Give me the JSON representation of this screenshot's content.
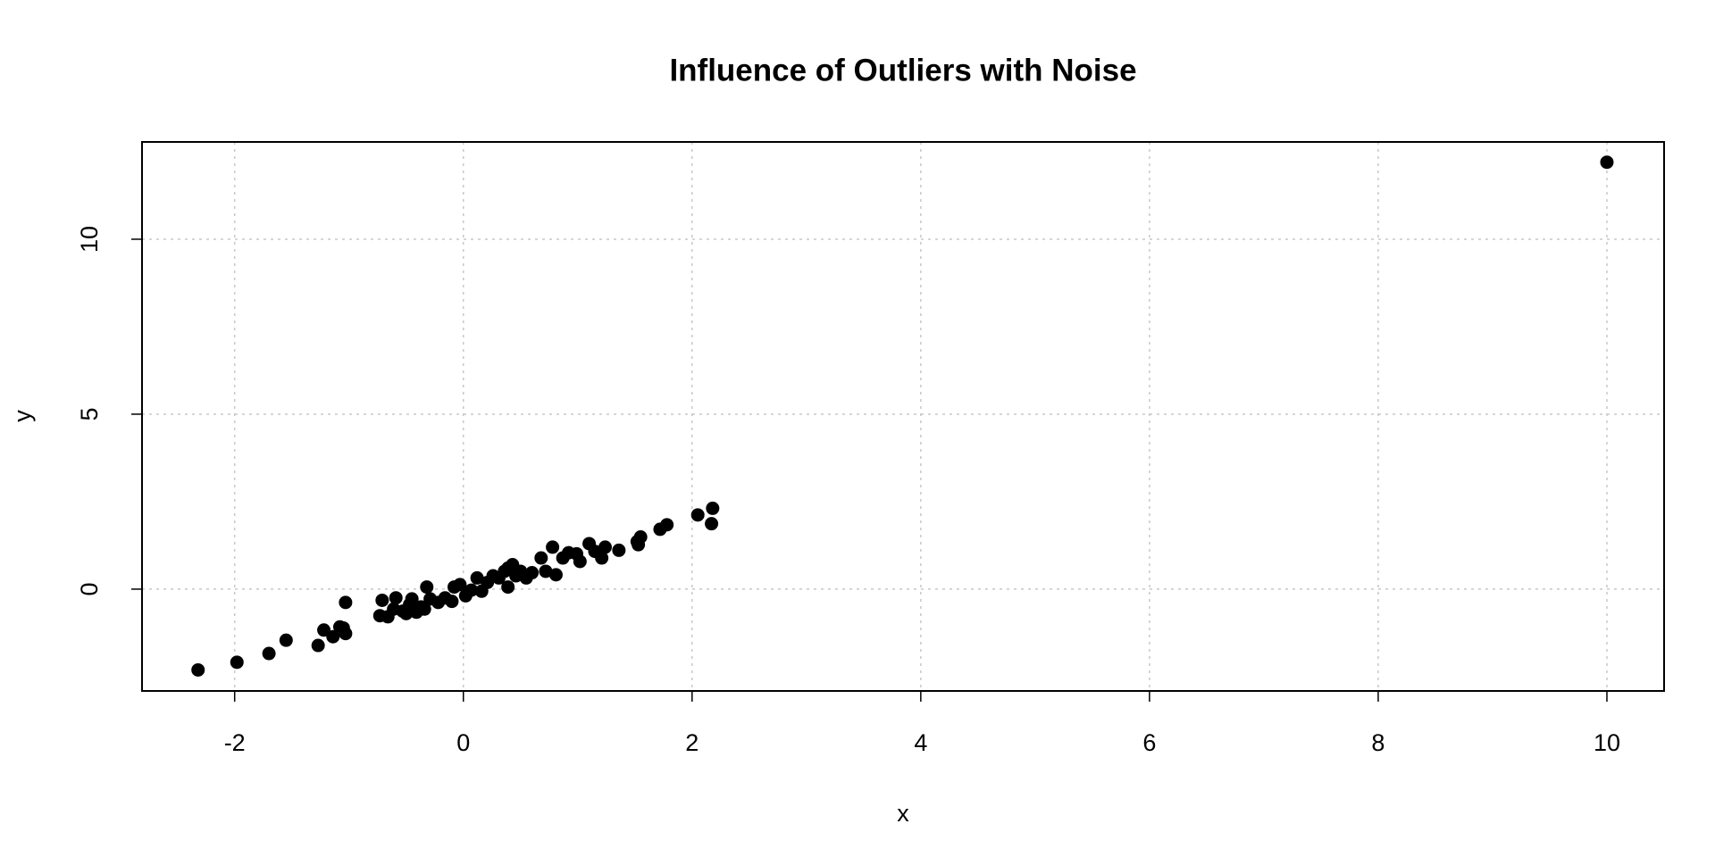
{
  "chart_data": {
    "type": "scatter",
    "title": "Influence of Outliers with Noise",
    "x_label": "x",
    "y_label": "y",
    "color": "#000000",
    "grid": true,
    "x": [
      -2.32,
      -1.98,
      -1.7,
      -1.55,
      -1.27,
      -1.22,
      -1.14,
      -1.08,
      -1.03,
      -1.03,
      -1.05,
      -0.73,
      -0.71,
      -0.66,
      -0.61,
      -0.59,
      -0.53,
      -0.5,
      -0.47,
      -0.45,
      -0.41,
      -0.37,
      -0.34,
      -0.32,
      -0.29,
      -0.22,
      -0.16,
      -0.1,
      -0.08,
      -0.03,
      0.02,
      0.07,
      0.12,
      0.16,
      0.21,
      0.26,
      0.31,
      0.36,
      0.39,
      0.39,
      0.43,
      0.46,
      0.5,
      0.55,
      0.6,
      0.68,
      0.72,
      0.78,
      0.81,
      0.87,
      0.92,
      0.99,
      1.02,
      1.1,
      1.15,
      1.21,
      1.24,
      1.36,
      1.52,
      1.55,
      1.53,
      1.72,
      1.78,
      2.05,
      2.17,
      2.18,
      10.0
    ],
    "values": [
      -2.31,
      -2.09,
      -1.84,
      -1.46,
      -1.61,
      -1.17,
      -1.36,
      -1.08,
      -1.27,
      -0.38,
      -1.11,
      -0.76,
      -0.32,
      -0.79,
      -0.57,
      -0.25,
      -0.63,
      -0.7,
      -0.44,
      -0.28,
      -0.66,
      -0.51,
      -0.57,
      0.06,
      -0.28,
      -0.38,
      -0.25,
      -0.35,
      0.06,
      0.13,
      -0.19,
      -0.03,
      0.32,
      -0.06,
      0.19,
      0.38,
      0.32,
      0.51,
      0.6,
      0.06,
      0.7,
      0.38,
      0.51,
      0.32,
      0.47,
      0.89,
      0.51,
      1.2,
      0.41,
      0.89,
      1.04,
      1.01,
      0.79,
      1.3,
      1.08,
      0.89,
      1.2,
      1.11,
      1.36,
      1.49,
      1.27,
      1.71,
      1.84,
      2.12,
      1.87,
      2.31,
      12.2
    ],
    "xlim": [
      -2.81,
      10.5
    ],
    "xticks": [
      -2,
      0,
      2,
      4,
      6,
      8,
      10
    ],
    "ylim": [
      -2.91,
      12.78
    ],
    "yticks": [
      0,
      5,
      10
    ]
  }
}
